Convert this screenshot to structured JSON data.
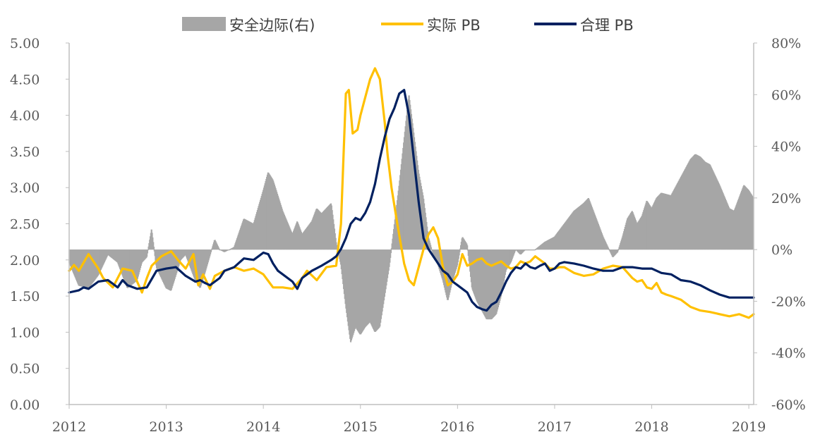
{
  "chart_data": {
    "type": "line",
    "title": "",
    "legend": {
      "placement": "top-center",
      "entries": [
        {
          "key": "margin",
          "label": "安全边际(右)",
          "style": "area",
          "color": "#a6a6a6"
        },
        {
          "key": "actual",
          "label": "实际 PB",
          "style": "line",
          "color": "#ffc000"
        },
        {
          "key": "fair",
          "label": "合理 PB",
          "style": "line",
          "color": "#002060"
        }
      ]
    },
    "x_axis": {
      "type": "time",
      "ticks": [
        "2012",
        "2013",
        "2014",
        "2015",
        "2016",
        "2017",
        "2018",
        "2019"
      ],
      "range": [
        2012.0,
        2019.05
      ]
    },
    "y_left": {
      "ticks": [
        "0.00",
        "0.50",
        "1.00",
        "1.50",
        "2.00",
        "2.50",
        "3.00",
        "3.50",
        "4.00",
        "4.50",
        "5.00"
      ],
      "range": [
        0,
        5
      ]
    },
    "y_right": {
      "ticks": [
        "-60%",
        "-40%",
        "-20%",
        "0%",
        "20%",
        "40%",
        "60%",
        "80%"
      ],
      "range": [
        -60,
        80
      ],
      "unit": "%"
    },
    "grid": false,
    "series": [
      {
        "name": "安全边际(右)",
        "axis": "right",
        "style": "area",
        "color": "#a6a6a6",
        "x": [
          2012.0,
          2012.1,
          2012.2,
          2012.3,
          2012.4,
          2012.5,
          2012.6,
          2012.7,
          2012.75,
          2012.8,
          2012.85,
          2012.9,
          2013.0,
          2013.05,
          2013.1,
          2013.15,
          2013.2,
          2013.3,
          2013.35,
          2013.4,
          2013.5,
          2013.55,
          2013.6,
          2013.7,
          2013.8,
          2013.9,
          2014.0,
          2014.05,
          2014.1,
          2014.2,
          2014.3,
          2014.35,
          2014.4,
          2014.5,
          2014.55,
          2014.6,
          2014.7,
          2014.75,
          2014.8,
          2014.85,
          2014.9,
          2014.95,
          2015.0,
          2015.05,
          2015.1,
          2015.15,
          2015.2,
          2015.3,
          2015.4,
          2015.5,
          2015.55,
          2015.6,
          2015.65,
          2015.7,
          2015.75,
          2015.8,
          2015.85,
          2015.9,
          2015.95,
          2016.0,
          2016.05,
          2016.1,
          2016.15,
          2016.2,
          2016.3,
          2016.35,
          2016.4,
          2016.45,
          2016.5,
          2016.55,
          2016.6,
          2016.65,
          2016.7,
          2016.8,
          2016.9,
          2017.0,
          2017.1,
          2017.2,
          2017.3,
          2017.35,
          2017.4,
          2017.5,
          2017.6,
          2017.65,
          2017.7,
          2017.75,
          2017.8,
          2017.85,
          2017.9,
          2017.95,
          2018.0,
          2018.05,
          2018.1,
          2018.2,
          2018.3,
          2018.4,
          2018.45,
          2018.5,
          2018.55,
          2018.6,
          2018.7,
          2018.8,
          2018.85,
          2018.9,
          2018.95,
          2019.0,
          2019.05
        ],
        "values": [
          -5,
          -14,
          -15,
          -10,
          -2,
          -5,
          -15,
          -12,
          -5,
          -3,
          8,
          -7,
          -15,
          -16,
          -10,
          -4,
          -2,
          -12,
          -15,
          -9,
          4,
          0,
          -1,
          1,
          12,
          10,
          23,
          30,
          27,
          15,
          6,
          11,
          6,
          11,
          16,
          14,
          18,
          3,
          -6,
          -22,
          -36,
          -30,
          -33,
          -30,
          -28,
          -32,
          -30,
          -6,
          25,
          60,
          45,
          30,
          20,
          5,
          -2,
          -6,
          -12,
          -20,
          -12,
          -6,
          5,
          2,
          -15,
          -20,
          -27,
          -27,
          -25,
          -18,
          -8,
          -5,
          0,
          -2,
          0,
          0,
          3,
          5,
          10,
          15,
          18,
          20,
          15,
          5,
          -3,
          -1,
          5,
          12,
          15,
          10,
          13,
          19,
          16,
          20,
          22,
          21,
          28,
          35,
          37,
          36,
          34,
          33,
          25,
          16,
          15,
          20,
          25,
          23,
          20
        ]
      },
      {
        "name": "实际 PB",
        "axis": "left",
        "style": "line",
        "color": "#ffc000",
        "x": [
          2012.0,
          2012.05,
          2012.1,
          2012.2,
          2012.3,
          2012.35,
          2012.45,
          2012.55,
          2012.65,
          2012.75,
          2012.8,
          2012.85,
          2012.95,
          2013.05,
          2013.12,
          2013.2,
          2013.28,
          2013.33,
          2013.38,
          2013.45,
          2013.5,
          2013.6,
          2013.7,
          2013.8,
          2013.9,
          2014.0,
          2014.1,
          2014.2,
          2014.3,
          2014.4,
          2014.45,
          2014.55,
          2014.65,
          2014.75,
          2014.8,
          2014.85,
          2014.88,
          2014.92,
          2014.97,
          2015.0,
          2015.03,
          2015.06,
          2015.1,
          2015.15,
          2015.2,
          2015.25,
          2015.28,
          2015.32,
          2015.38,
          2015.45,
          2015.5,
          2015.55,
          2015.6,
          2015.65,
          2015.7,
          2015.75,
          2015.8,
          2015.85,
          2015.9,
          2015.95,
          2016.0,
          2016.05,
          2016.1,
          2016.15,
          2016.2,
          2016.25,
          2016.3,
          2016.35,
          2016.4,
          2016.45,
          2016.5,
          2016.55,
          2016.6,
          2016.65,
          2016.7,
          2016.75,
          2016.8,
          2016.85,
          2016.9,
          2016.95,
          2017.0,
          2017.05,
          2017.1,
          2017.2,
          2017.3,
          2017.4,
          2017.5,
          2017.6,
          2017.7,
          2017.8,
          2017.85,
          2017.9,
          2017.95,
          2018.0,
          2018.05,
          2018.1,
          2018.15,
          2018.2,
          2018.3,
          2018.4,
          2018.5,
          2018.6,
          2018.7,
          2018.8,
          2018.9,
          2019.0,
          2019.05
        ],
        "values": [
          1.85,
          1.93,
          1.85,
          2.08,
          1.88,
          1.75,
          1.62,
          1.88,
          1.85,
          1.55,
          1.75,
          1.92,
          2.05,
          2.12,
          2.0,
          1.88,
          2.08,
          1.65,
          1.8,
          1.6,
          1.78,
          1.85,
          1.9,
          1.85,
          1.88,
          1.8,
          1.62,
          1.62,
          1.6,
          1.75,
          1.85,
          1.72,
          1.9,
          1.92,
          2.5,
          4.3,
          4.35,
          3.75,
          3.8,
          4.0,
          4.15,
          4.3,
          4.5,
          4.65,
          4.5,
          3.9,
          3.45,
          3.0,
          2.5,
          1.95,
          1.72,
          1.65,
          1.9,
          2.15,
          2.35,
          2.45,
          2.3,
          1.9,
          1.65,
          1.7,
          1.8,
          2.08,
          1.92,
          1.95,
          2.0,
          2.02,
          1.95,
          1.92,
          1.95,
          1.98,
          1.92,
          1.88,
          1.9,
          1.98,
          1.95,
          1.98,
          2.05,
          2.0,
          1.95,
          1.88,
          1.88,
          1.9,
          1.9,
          1.82,
          1.78,
          1.8,
          1.88,
          1.92,
          1.9,
          1.75,
          1.7,
          1.72,
          1.62,
          1.6,
          1.68,
          1.55,
          1.52,
          1.5,
          1.45,
          1.35,
          1.3,
          1.28,
          1.25,
          1.22,
          1.25,
          1.2,
          1.25
        ]
      },
      {
        "name": "合理 PB",
        "axis": "left",
        "style": "line",
        "color": "#002060",
        "x": [
          2012.0,
          2012.1,
          2012.15,
          2012.2,
          2012.3,
          2012.4,
          2012.5,
          2012.55,
          2012.6,
          2012.7,
          2012.8,
          2012.9,
          2013.0,
          2013.1,
          2013.2,
          2013.3,
          2013.35,
          2013.4,
          2013.45,
          2013.5,
          2013.55,
          2013.6,
          2013.7,
          2013.8,
          2013.9,
          2014.0,
          2014.05,
          2014.1,
          2014.15,
          2014.2,
          2014.3,
          2014.35,
          2014.4,
          2014.5,
          2014.6,
          2014.7,
          2014.75,
          2014.8,
          2014.85,
          2014.9,
          2014.95,
          2015.0,
          2015.05,
          2015.1,
          2015.15,
          2015.2,
          2015.25,
          2015.3,
          2015.35,
          2015.4,
          2015.45,
          2015.5,
          2015.55,
          2015.6,
          2015.65,
          2015.7,
          2015.75,
          2015.8,
          2015.85,
          2015.9,
          2015.95,
          2016.0,
          2016.05,
          2016.1,
          2016.15,
          2016.2,
          2016.25,
          2016.3,
          2016.35,
          2016.4,
          2016.45,
          2016.5,
          2016.55,
          2016.6,
          2016.65,
          2016.7,
          2016.75,
          2016.8,
          2016.85,
          2016.9,
          2016.95,
          2017.0,
          2017.05,
          2017.1,
          2017.2,
          2017.3,
          2017.4,
          2017.5,
          2017.6,
          2017.7,
          2017.8,
          2017.9,
          2018.0,
          2018.1,
          2018.2,
          2018.3,
          2018.4,
          2018.5,
          2018.6,
          2018.7,
          2018.8,
          2018.85,
          2018.9,
          2019.0,
          2019.05
        ],
        "values": [
          1.55,
          1.58,
          1.62,
          1.6,
          1.7,
          1.72,
          1.62,
          1.72,
          1.65,
          1.6,
          1.62,
          1.85,
          1.88,
          1.9,
          1.78,
          1.7,
          1.72,
          1.68,
          1.65,
          1.7,
          1.75,
          1.85,
          1.9,
          2.02,
          2.0,
          2.1,
          2.08,
          1.95,
          1.85,
          1.8,
          1.7,
          1.6,
          1.75,
          1.85,
          1.92,
          2.0,
          2.05,
          2.15,
          2.3,
          2.5,
          2.58,
          2.55,
          2.65,
          2.8,
          3.05,
          3.4,
          3.7,
          3.95,
          4.1,
          4.3,
          4.35,
          4.0,
          3.4,
          2.8,
          2.3,
          2.15,
          2.05,
          1.95,
          1.85,
          1.8,
          1.7,
          1.65,
          1.6,
          1.55,
          1.42,
          1.35,
          1.32,
          1.3,
          1.38,
          1.42,
          1.55,
          1.7,
          1.82,
          1.9,
          1.88,
          1.95,
          1.9,
          1.88,
          1.92,
          1.95,
          1.85,
          1.88,
          1.95,
          1.97,
          1.95,
          1.92,
          1.88,
          1.85,
          1.85,
          1.9,
          1.9,
          1.88,
          1.88,
          1.82,
          1.8,
          1.72,
          1.7,
          1.65,
          1.58,
          1.52,
          1.48,
          1.48,
          1.48,
          1.48,
          1.48
        ]
      }
    ]
  }
}
